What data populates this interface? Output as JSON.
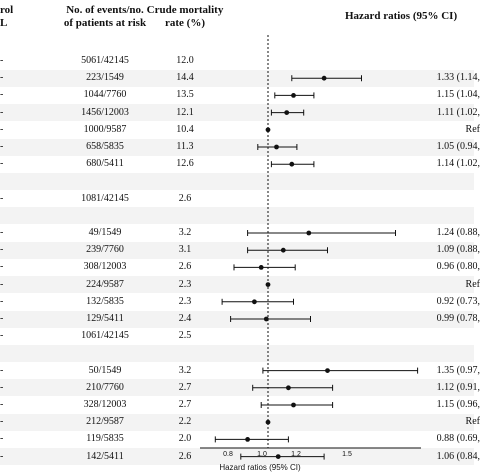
{
  "header": {
    "col0_line1": "rol",
    "col0_line2": "L",
    "events_line1": "No. of events/no.",
    "events_line2": "of patients at risk",
    "rate_line1": "Crude mortality",
    "rate_line2": "rate (%)",
    "hr": "Hazard ratios (95% CI)"
  },
  "rows": [
    {
      "events": "5061/42145",
      "rate": "12.0",
      "hr_text": "",
      "est": null
    },
    {
      "events": "223/1549",
      "rate": "14.4",
      "hr_text": "1.33 (1.14,",
      "est": 1.33,
      "lo": 1.14,
      "hi": 1.55
    },
    {
      "events": "1044/7760",
      "rate": "13.5",
      "hr_text": "1.15 (1.04,",
      "est": 1.15,
      "lo": 1.04,
      "hi": 1.27
    },
    {
      "events": "1456/12003",
      "rate": "12.1",
      "hr_text": "1.11 (1.02,",
      "est": 1.11,
      "lo": 1.02,
      "hi": 1.21
    },
    {
      "events": "1000/9587",
      "rate": "10.4",
      "hr_text": "Ref",
      "est": 1.0,
      "lo": 1.0,
      "hi": 1.0
    },
    {
      "events": "658/5835",
      "rate": "11.3",
      "hr_text": "1.05 (0.94,",
      "est": 1.05,
      "lo": 0.94,
      "hi": 1.17
    },
    {
      "events": "680/5411",
      "rate": "12.6",
      "hr_text": "1.14 (1.02,",
      "est": 1.14,
      "lo": 1.02,
      "hi": 1.27
    },
    {
      "events": "",
      "rate": "",
      "hr_text": "",
      "est": null
    },
    {
      "events": "1081/42145",
      "rate": "2.6",
      "hr_text": "",
      "est": null
    },
    {
      "events": "",
      "rate": "",
      "hr_text": "",
      "est": null
    },
    {
      "events": "49/1549",
      "rate": "3.2",
      "hr_text": "1.24 (0.88,",
      "est": 1.24,
      "lo": 0.88,
      "hi": 1.75
    },
    {
      "events": "239/7760",
      "rate": "3.1",
      "hr_text": "1.09 (0.88,",
      "est": 1.09,
      "lo": 0.88,
      "hi": 1.35
    },
    {
      "events": "308/12003",
      "rate": "2.6",
      "hr_text": "0.96 (0.80,",
      "est": 0.96,
      "lo": 0.8,
      "hi": 1.16
    },
    {
      "events": "224/9587",
      "rate": "2.3",
      "hr_text": "Ref",
      "est": 1.0,
      "lo": 1.0,
      "hi": 1.0
    },
    {
      "events": "132/5835",
      "rate": "2.3",
      "hr_text": "0.92 (0.73,",
      "est": 0.92,
      "lo": 0.73,
      "hi": 1.15
    },
    {
      "events": "129/5411",
      "rate": "2.4",
      "hr_text": "0.99 (0.78,",
      "est": 0.99,
      "lo": 0.78,
      "hi": 1.25
    },
    {
      "events": "1061/42145",
      "rate": "2.5",
      "hr_text": "",
      "est": null
    },
    {
      "events": "",
      "rate": "",
      "hr_text": "",
      "est": null
    },
    {
      "events": "50/1549",
      "rate": "3.2",
      "hr_text": "1.35 (0.97,",
      "est": 1.35,
      "lo": 0.97,
      "hi": 1.88
    },
    {
      "events": "210/7760",
      "rate": "2.7",
      "hr_text": "1.12 (0.91,",
      "est": 1.12,
      "lo": 0.91,
      "hi": 1.38
    },
    {
      "events": "328/12003",
      "rate": "2.7",
      "hr_text": "1.15 (0.96,",
      "est": 1.15,
      "lo": 0.96,
      "hi": 1.38
    },
    {
      "events": "212/9587",
      "rate": "2.2",
      "hr_text": "Ref",
      "est": 1.0,
      "lo": 1.0,
      "hi": 1.0
    },
    {
      "events": "119/5835",
      "rate": "2.0",
      "hr_text": "0.88 (0.69,",
      "est": 0.88,
      "lo": 0.69,
      "hi": 1.12
    },
    {
      "events": "142/5411",
      "rate": "2.6",
      "hr_text": "1.06 (0.84,",
      "est": 1.06,
      "lo": 0.84,
      "hi": 1.33
    }
  ],
  "chart_data": {
    "type": "scatter",
    "xlabel": "Hazard ratios (95% CI)",
    "x_ticks": [
      "0.8",
      "1.0",
      "1.2",
      "1.5"
    ],
    "reference_line": 1.0,
    "series": [
      {
        "name": "",
        "points": [
          {
            "est": 1.33,
            "lo": 1.14,
            "hi": 1.55
          },
          {
            "est": 1.15,
            "lo": 1.04,
            "hi": 1.27
          },
          {
            "est": 1.11,
            "lo": 1.02,
            "hi": 1.21
          },
          {
            "est": 1.0,
            "lo": 1.0,
            "hi": 1.0
          },
          {
            "est": 1.05,
            "lo": 0.94,
            "hi": 1.17
          },
          {
            "est": 1.14,
            "lo": 1.02,
            "hi": 1.27
          },
          {
            "est": 1.24,
            "lo": 0.88,
            "hi": 1.75
          },
          {
            "est": 1.09,
            "lo": 0.88,
            "hi": 1.35
          },
          {
            "est": 0.96,
            "lo": 0.8,
            "hi": 1.16
          },
          {
            "est": 1.0,
            "lo": 1.0,
            "hi": 1.0
          },
          {
            "est": 0.92,
            "lo": 0.73,
            "hi": 1.15
          },
          {
            "est": 0.99,
            "lo": 0.78,
            "hi": 1.25
          },
          {
            "est": 1.35,
            "lo": 0.97,
            "hi": 1.88
          },
          {
            "est": 1.12,
            "lo": 0.91,
            "hi": 1.38
          },
          {
            "est": 1.15,
            "lo": 0.96,
            "hi": 1.38
          },
          {
            "est": 1.0,
            "lo": 1.0,
            "hi": 1.0
          },
          {
            "est": 0.88,
            "lo": 0.69,
            "hi": 1.12
          },
          {
            "est": 1.06,
            "lo": 0.84,
            "hi": 1.33
          }
        ]
      }
    ]
  }
}
